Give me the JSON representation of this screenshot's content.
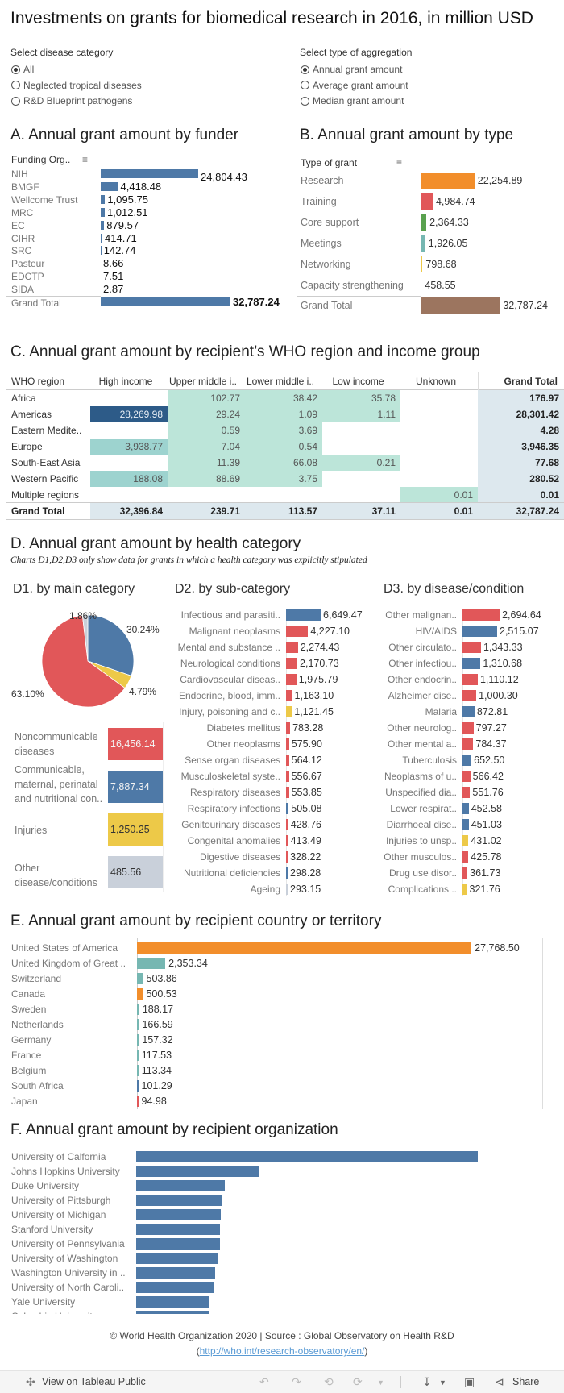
{
  "title": "Investments on grants for biomedical research in 2016, in million USD",
  "filters": {
    "disease": {
      "label": "Select disease category",
      "options": [
        "All",
        "Neglected tropical diseases",
        "R&D Blueprint pathogens"
      ],
      "selected": 0
    },
    "aggregation": {
      "label": "Select type of aggregation",
      "options": [
        "Annual grant amount",
        "Average grant amount",
        "Median grant amount"
      ],
      "selected": 0
    }
  },
  "colors": {
    "blue": "#4e79a7",
    "red": "#e15759",
    "yellow": "#edc948",
    "orange": "#f28e2b",
    "teal": "#76b7b2",
    "green": "#59a14f",
    "brown": "#9c755f",
    "gray": "#c9d0da",
    "darkcell": "#2d5b88",
    "tealcell": "#9dd3cf",
    "mintcell": "#bce5d9",
    "totalcell": "#dde8ee"
  },
  "chart_data": [
    {
      "id": "A",
      "type": "bar",
      "title": "A. Annual grant amount by funder",
      "column_header": "Funding Org..",
      "categories": [
        "NIH",
        "BMGF",
        "Wellcome Trust",
        "MRC",
        "EC",
        "CIHR",
        "SRC",
        "Pasteur",
        "EDCTP",
        "SIDA"
      ],
      "values": [
        24804.43,
        4418.48,
        1095.75,
        1012.51,
        879.57,
        414.71,
        142.74,
        8.66,
        7.51,
        2.87
      ],
      "total_label": "Grand Total",
      "total": 32787.24
    },
    {
      "id": "B",
      "type": "bar",
      "title": "B. Annual grant amount by type",
      "column_header": "Type of grant",
      "categories": [
        "Research",
        "Training",
        "Core support",
        "Meetings",
        "Networking",
        "Capacity strengthening"
      ],
      "values": [
        22254.89,
        4984.74,
        2364.33,
        1926.05,
        798.68,
        458.55
      ],
      "series_colors": [
        "orange",
        "red",
        "green",
        "teal",
        "yellow",
        "blue"
      ],
      "total_label": "Grand Total",
      "total": 32787.24
    },
    {
      "id": "C",
      "type": "table",
      "title": "C. Annual grant amount by recipient’s WHO region and income group",
      "columns": [
        "WHO region",
        "High income",
        "Upper middle i..",
        "Lower middle i..",
        "Low income",
        "Unknown",
        "Grand Total"
      ],
      "rows": [
        {
          "region": "Africa",
          "values": [
            null,
            102.77,
            38.42,
            35.78,
            null
          ],
          "total": 176.97
        },
        {
          "region": "Americas",
          "values": [
            28269.98,
            29.24,
            1.09,
            1.11,
            null
          ],
          "total": 28301.42
        },
        {
          "region": "Eastern Medite..",
          "values": [
            null,
            0.59,
            3.69,
            null,
            null
          ],
          "total": 4.28
        },
        {
          "region": "Europe",
          "values": [
            3938.77,
            7.04,
            0.54,
            null,
            null
          ],
          "total": 3946.35
        },
        {
          "region": "South-East Asia",
          "values": [
            null,
            11.39,
            66.08,
            0.21,
            null
          ],
          "total": 77.68
        },
        {
          "region": "Western Pacific",
          "values": [
            188.08,
            88.69,
            3.75,
            null,
            null
          ],
          "total": 280.52
        },
        {
          "region": "Multiple regions",
          "values": [
            null,
            null,
            null,
            null,
            0.01
          ],
          "total": 0.01
        }
      ],
      "grand_total": {
        "label": "Grand Total",
        "values": [
          32396.84,
          239.71,
          113.57,
          37.11,
          0.01
        ],
        "total": 32787.24
      }
    },
    {
      "id": "D1",
      "type": "pie",
      "section_title": "D. Annual grant amount by health category",
      "subtitle": "Charts D1,D2,D3 only show data for grants in which a health category was explicitly stipulated",
      "title": "D1. by main category",
      "slices": [
        {
          "label": "Communicable, maternal, perinatal and nutritional con..",
          "percent": 30.24,
          "percent_label": "30.24%",
          "value": 7887.34,
          "color": "blue"
        },
        {
          "label": "Injuries",
          "percent": 4.79,
          "percent_label": "4.79%",
          "value": 1250.25,
          "color": "yellow"
        },
        {
          "label": "Noncommunicable diseases",
          "percent": 63.1,
          "percent_label": "63.10%",
          "value": 16456.14,
          "color": "red"
        },
        {
          "label": "Other disease/conditions",
          "percent": 1.86,
          "percent_label": "1.86%",
          "value": 485.56,
          "color": "gray"
        }
      ],
      "bar_order": [
        2,
        0,
        1,
        3
      ]
    },
    {
      "id": "D2",
      "type": "bar",
      "title": "D2. by sub-category",
      "categories": [
        "Infectious and parasiti..",
        "Malignant neoplasms",
        "Mental and substance ..",
        "Neurological conditions",
        "Cardiovascular diseas..",
        "Endocrine, blood, imm..",
        "Injury, poisoning and c..",
        "Diabetes mellitus",
        "Other neoplasms",
        "Sense organ diseases",
        "Musculoskeletal syste..",
        "Respiratory diseases",
        "Respiratory infections",
        "Genitourinary diseases",
        "Congenital anomalies",
        "Digestive diseases",
        "Nutritional deficiencies",
        "Ageing"
      ],
      "values": [
        6649.47,
        4227.1,
        2274.43,
        2170.73,
        1975.79,
        1163.1,
        1121.45,
        783.28,
        575.9,
        564.12,
        556.67,
        553.85,
        505.08,
        428.76,
        413.49,
        328.22,
        298.28,
        293.15
      ],
      "series_colors": [
        "blue",
        "red",
        "red",
        "red",
        "red",
        "red",
        "yellow",
        "red",
        "red",
        "red",
        "red",
        "red",
        "blue",
        "red",
        "red",
        "red",
        "blue",
        "gray"
      ]
    },
    {
      "id": "D3",
      "type": "bar",
      "title": "D3. by disease/condition",
      "categories": [
        "Other malignan..",
        "HIV/AIDS",
        "Other circulato..",
        "Other infectiou..",
        "Other endocrin..",
        "Alzheimer dise..",
        "Malaria",
        "Other neurolog..",
        "Other mental a..",
        "Tuberculosis",
        "Neoplasms of u..",
        "Unspecified dia..",
        "Lower respirat..",
        "Diarrhoeal dise..",
        "Injuries to unsp..",
        "Other musculos..",
        "Drug use disor..",
        "Complications .."
      ],
      "values": [
        2694.64,
        2515.07,
        1343.33,
        1310.68,
        1110.12,
        1000.3,
        872.81,
        797.27,
        784.37,
        652.5,
        566.42,
        551.76,
        452.58,
        451.03,
        431.02,
        425.78,
        361.73,
        321.76
      ],
      "series_colors": [
        "red",
        "blue",
        "red",
        "blue",
        "red",
        "red",
        "blue",
        "red",
        "red",
        "blue",
        "red",
        "red",
        "blue",
        "blue",
        "yellow",
        "red",
        "red",
        "yellow"
      ]
    },
    {
      "id": "E",
      "type": "bar",
      "title": "E. Annual grant amount by recipient country or territory",
      "categories": [
        "United States of America",
        "United Kingdom of Great ..",
        "Switzerland",
        "Canada",
        "Sweden",
        "Netherlands",
        "Germany",
        "France",
        "Belgium",
        "South Africa",
        "Japan"
      ],
      "values": [
        27768.5,
        2353.34,
        503.86,
        500.53,
        188.17,
        166.59,
        157.32,
        117.53,
        113.34,
        101.29,
        94.98
      ],
      "series_colors": [
        "orange",
        "teal",
        "teal",
        "orange",
        "teal",
        "teal",
        "teal",
        "teal",
        "teal",
        "blue",
        "red"
      ]
    },
    {
      "id": "F",
      "type": "bar",
      "title": "F. Annual grant amount by recipient organization",
      "categories": [
        "University of Calfornia",
        "Johns Hopkins University",
        "Duke University",
        "University of Pittsburgh",
        "University of Michigan",
        "Stanford University",
        "University of Pennsylvania",
        "University of Washington",
        "Washington University in ..",
        "University of North Caroli..",
        "Yale University",
        "Columbia University"
      ],
      "relative_values": [
        1.0,
        0.358,
        0.259,
        0.25,
        0.248,
        0.245,
        0.245,
        0.238,
        0.231,
        0.229,
        0.215,
        0.212
      ]
    }
  ],
  "footer": {
    "copyright": "© World Health Organization 2020 | Source : Global Observatory on Health R&D",
    "link": "http://who.int/research-observatory/en/"
  },
  "toolbar": {
    "view_label": "View on Tableau Public",
    "share_label": "Share"
  }
}
